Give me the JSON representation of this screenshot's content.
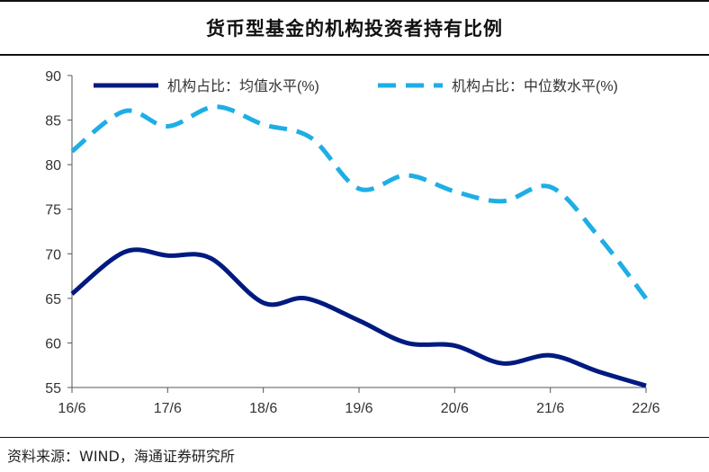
{
  "title": "货币型基金的机构投资者持有比例",
  "source": "资料来源：WIND，海通证券研究所",
  "chart_data": {
    "type": "line",
    "title": "货币型基金的机构投资者持有比例",
    "xlabel": "",
    "ylabel": "",
    "ylim": [
      55,
      90
    ],
    "yticks": [
      55,
      60,
      65,
      70,
      75,
      80,
      85,
      90
    ],
    "xlim": [
      0,
      12
    ],
    "categories": [
      "16/6",
      "17/6",
      "18/6",
      "19/6",
      "20/6",
      "21/6",
      "22/6"
    ],
    "category_x": [
      0,
      2,
      4,
      6,
      8,
      10,
      12
    ],
    "legend_position": "top",
    "series": [
      {
        "name": "机构占比：均值水平(%)",
        "color": "#001a80",
        "style": "solid",
        "x": [
          0,
          1.1,
          2,
          2.9,
          4,
          4.9,
          6,
          7,
          8,
          9,
          10,
          11,
          12
        ],
        "values": [
          65.5,
          70.2,
          69.8,
          69.5,
          64.5,
          65.0,
          62.5,
          60.0,
          59.7,
          57.7,
          58.6,
          56.8,
          55.2
        ]
      },
      {
        "name": "机构占比：中位数水平(%)",
        "color": "#1eaee6",
        "style": "dashed",
        "x": [
          0,
          1.1,
          2,
          3,
          4,
          5,
          6,
          7,
          8,
          9,
          10,
          11,
          12
        ],
        "values": [
          81.5,
          86.0,
          84.3,
          86.5,
          84.5,
          83.0,
          77.3,
          78.8,
          77.0,
          75.9,
          77.5,
          72.0,
          65.0
        ]
      }
    ]
  }
}
